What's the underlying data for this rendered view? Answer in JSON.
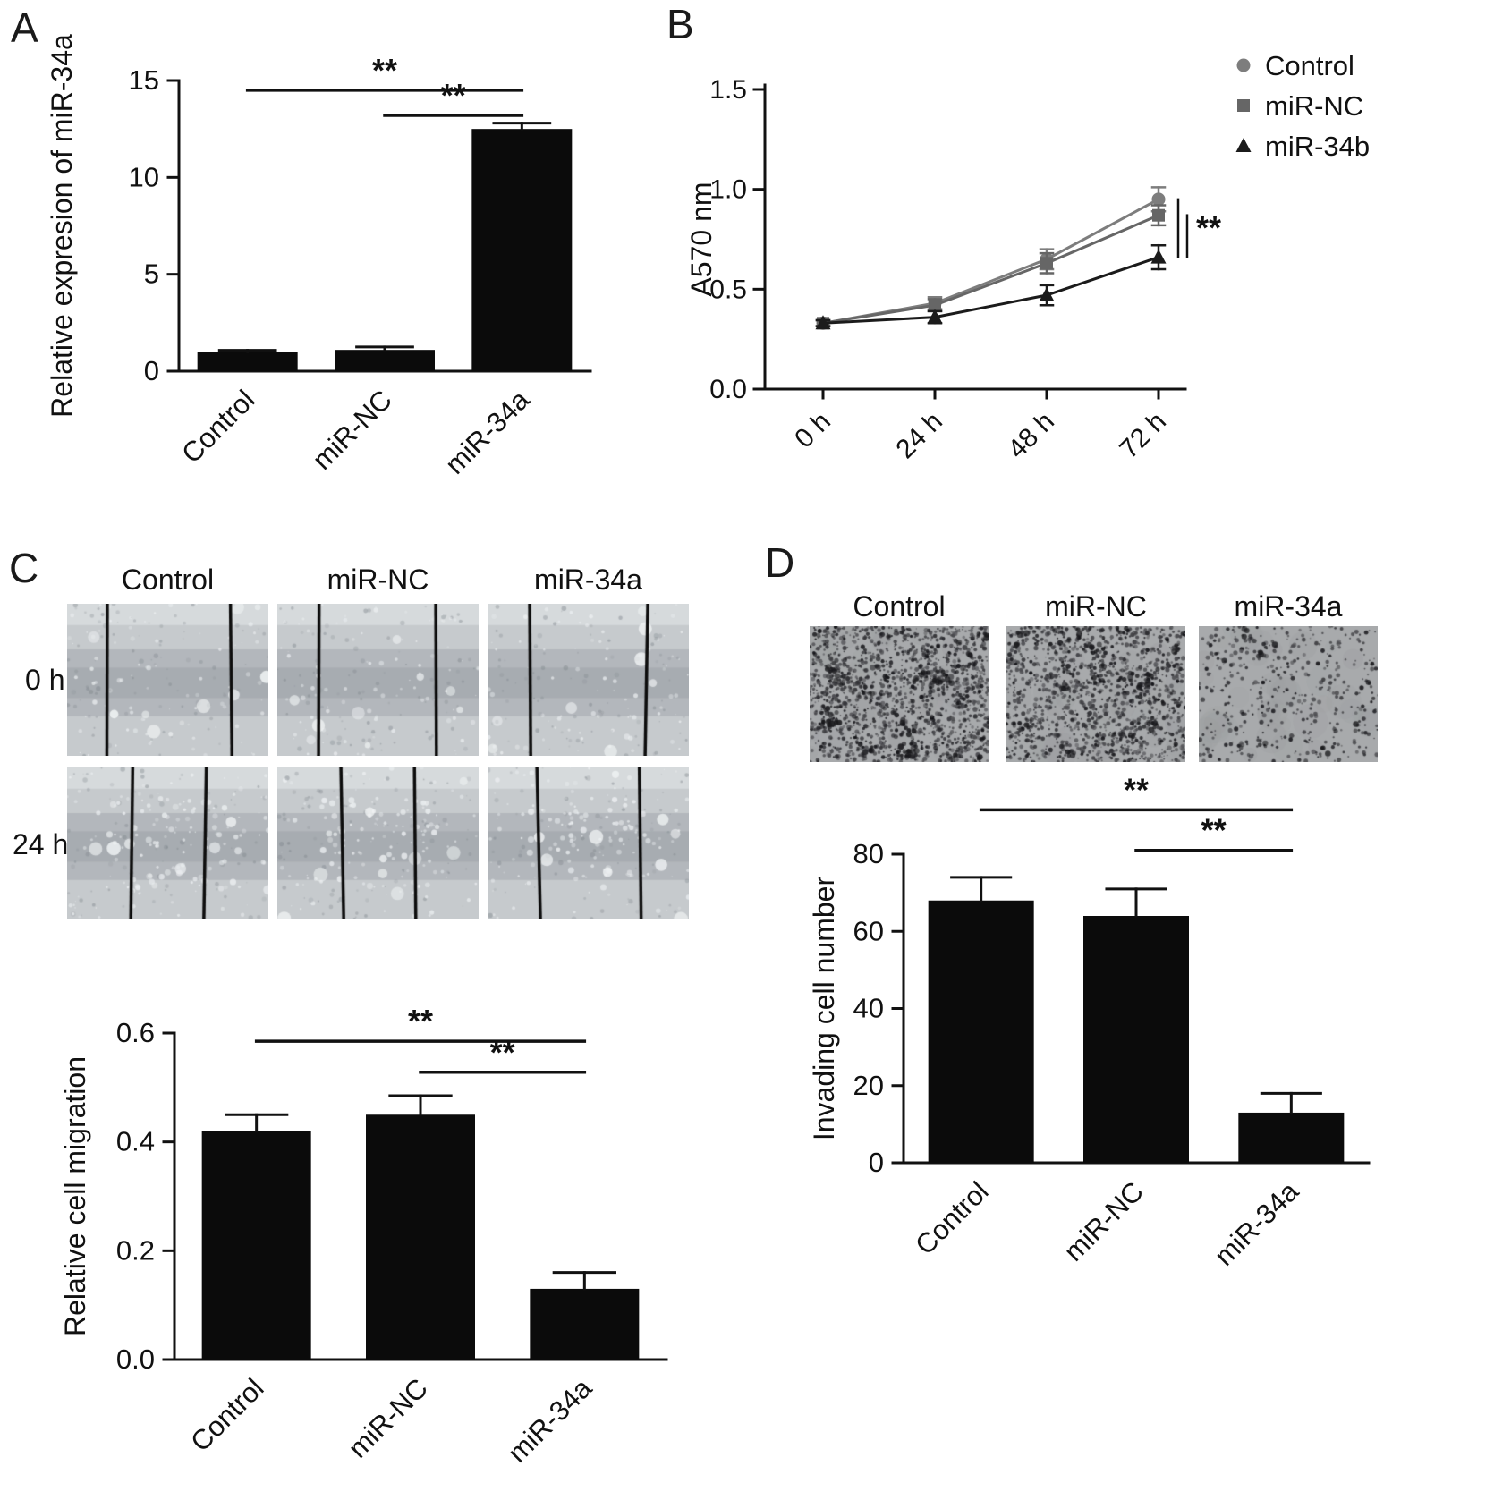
{
  "panels": {
    "A": {
      "label": "A"
    },
    "B": {
      "label": "B"
    },
    "C": {
      "label": "C",
      "columns": [
        "Control",
        "miR-NC",
        "miR-34a"
      ],
      "rows": [
        "0 h",
        "24 h"
      ],
      "wound_gaps": [
        [
          0.62,
          0.6,
          0.57
        ],
        [
          0.37,
          0.35,
          0.5
        ]
      ]
    },
    "D": {
      "label": "D",
      "columns": [
        "Control",
        "miR-NC",
        "miR-34a"
      ],
      "cell_densities": [
        1450,
        1350,
        430
      ]
    }
  },
  "chart_data": [
    {
      "id": "A",
      "type": "bar",
      "title": "",
      "ylabel": "Relative expresion of miR-34a",
      "categories": [
        "Control",
        "miR-NC",
        "miR-34a"
      ],
      "values": [
        1.0,
        1.1,
        12.5
      ],
      "errors": [
        0.08,
        0.15,
        0.3
      ],
      "ylim": [
        0,
        15
      ],
      "yticks": [
        "0",
        "5",
        "10",
        "15"
      ],
      "bar_color": "#0b0b0b",
      "significance": [
        {
          "from": 0,
          "to": 2,
          "y": 14.5,
          "label": "**"
        },
        {
          "from": 1,
          "to": 2,
          "y": 13.2,
          "label": "**"
        }
      ]
    },
    {
      "id": "B",
      "type": "line",
      "title": "",
      "ylabel": "A570 nm",
      "x_categories": [
        "0 h",
        "24 h",
        "48 h",
        "72 h"
      ],
      "series": [
        {
          "name": "Control",
          "marker": "circle",
          "color": "#7d7d7d",
          "values": [
            0.33,
            0.43,
            0.65,
            0.95
          ],
          "errors": [
            0.015,
            0.03,
            0.05,
            0.06
          ]
        },
        {
          "name": "miR-NC",
          "marker": "square",
          "color": "#666666",
          "values": [
            0.33,
            0.42,
            0.63,
            0.87
          ],
          "errors": [
            0.015,
            0.03,
            0.05,
            0.05
          ]
        },
        {
          "name": "miR-34b",
          "marker": "triangle",
          "color": "#1b1b1b",
          "values": [
            0.33,
            0.36,
            0.47,
            0.66
          ],
          "errors": [
            0.015,
            0.03,
            0.05,
            0.06
          ]
        }
      ],
      "ylim": [
        0,
        1.5
      ],
      "yticks": [
        "0.0",
        "0.5",
        "1.0",
        "1.5"
      ],
      "legend_position": "top-right",
      "significance_label": "**"
    },
    {
      "id": "C",
      "type": "bar",
      "title": "",
      "ylabel": "Relative cell migration",
      "categories": [
        "Control",
        "miR-NC",
        "miR-34a"
      ],
      "values": [
        0.42,
        0.45,
        0.13
      ],
      "errors": [
        0.03,
        0.035,
        0.03
      ],
      "ylim": [
        0,
        0.6
      ],
      "yticks": [
        "0.0",
        "0.2",
        "0.4",
        "0.6"
      ],
      "bar_color": "#0b0b0b",
      "significance": [
        {
          "from": 0,
          "to": 2,
          "y": 0.585,
          "label": "**"
        },
        {
          "from": 1,
          "to": 2,
          "y": 0.528,
          "label": "**"
        }
      ]
    },
    {
      "id": "D",
      "type": "bar",
      "title": "",
      "ylabel": "Invading cell number",
      "categories": [
        "Control",
        "miR-NC",
        "miR-34a"
      ],
      "values": [
        68,
        64,
        13
      ],
      "errors": [
        6,
        7,
        5
      ],
      "ylim": [
        0,
        80
      ],
      "yticks": [
        "0",
        "20",
        "40",
        "60",
        "80"
      ],
      "bar_color": "#0b0b0b",
      "significance": [
        {
          "from": 0,
          "to": 2,
          "y": 91.5,
          "label": "**"
        },
        {
          "from": 1,
          "to": 2,
          "y": 81.0,
          "label": "**"
        }
      ]
    }
  ]
}
